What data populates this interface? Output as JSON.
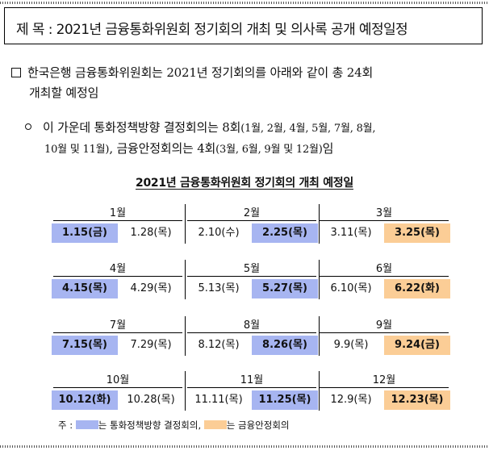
{
  "title": "제 목 : 2021년 금융통화위원회 정기회의 개최 및 의사록 공개 예정일정",
  "para1": {
    "line1": "한국은행 금융통화위원회는 2021년 정기회의를 아래와 같이 총 24회",
    "line2": "개최할 예정임"
  },
  "para2": {
    "line1_a": "이 가운데 통화정책방향 결정회의는 8회",
    "line1_b": "(1월, 2월, 4월, 5월, 7월, 8월,",
    "line2_a": "10월 및 11월)",
    "line2_b": ", 금융안정회의는 4회",
    "line2_c": "(3월, 6월, 9월 및 12월)",
    "line2_d": "임"
  },
  "schedule_title": "2021년 금융통화위원회 정기회의 개최 예정일",
  "rows": [
    {
      "months": [
        {
          "label": "1월",
          "dates": [
            {
              "text": "1.15(금)",
              "type": "blue"
            },
            {
              "text": "1.28(목)",
              "type": "plain"
            }
          ]
        },
        {
          "label": "2월",
          "dates": [
            {
              "text": "2.10(수)",
              "type": "plain"
            },
            {
              "text": "2.25(목)",
              "type": "blue"
            }
          ]
        },
        {
          "label": "3월",
          "dates": [
            {
              "text": "3.11(목)",
              "type": "plain"
            },
            {
              "text": "3.25(목)",
              "type": "orange"
            }
          ]
        }
      ]
    },
    {
      "months": [
        {
          "label": "4월",
          "dates": [
            {
              "text": "4.15(목)",
              "type": "blue"
            },
            {
              "text": "4.29(목)",
              "type": "plain"
            }
          ]
        },
        {
          "label": "5월",
          "dates": [
            {
              "text": "5.13(목)",
              "type": "plain"
            },
            {
              "text": "5.27(목)",
              "type": "blue"
            }
          ]
        },
        {
          "label": "6월",
          "dates": [
            {
              "text": "6.10(목)",
              "type": "plain"
            },
            {
              "text": "6.22(화)",
              "type": "orange"
            }
          ]
        }
      ]
    },
    {
      "months": [
        {
          "label": "7월",
          "dates": [
            {
              "text": "7.15(목)",
              "type": "blue"
            },
            {
              "text": "7.29(목)",
              "type": "plain"
            }
          ]
        },
        {
          "label": "8월",
          "dates": [
            {
              "text": "8.12(목)",
              "type": "plain"
            },
            {
              "text": "8.26(목)",
              "type": "blue"
            }
          ]
        },
        {
          "label": "9월",
          "dates": [
            {
              "text": "9.9(목)",
              "type": "plain"
            },
            {
              "text": "9.24(금)",
              "type": "orange"
            }
          ]
        }
      ]
    },
    {
      "months": [
        {
          "label": "10월",
          "dates": [
            {
              "text": "10.12(화)",
              "type": "blue"
            },
            {
              "text": "10.28(목)",
              "type": "plain"
            }
          ]
        },
        {
          "label": "11월",
          "dates": [
            {
              "text": "11.11(목)",
              "type": "plain"
            },
            {
              "text": "11.25(목)",
              "type": "blue"
            }
          ]
        },
        {
          "label": "12월",
          "dates": [
            {
              "text": "12.9(목)",
              "type": "plain"
            },
            {
              "text": "12.23(목)",
              "type": "orange"
            }
          ]
        }
      ]
    }
  ],
  "note": {
    "prefix": "주 : ",
    "blue_label": "는 통화정책방향 결정회의,",
    "orange_label": "는 금융안정회의"
  },
  "colors": {
    "blue": "#a7b5f1",
    "orange": "#fbcd96"
  }
}
